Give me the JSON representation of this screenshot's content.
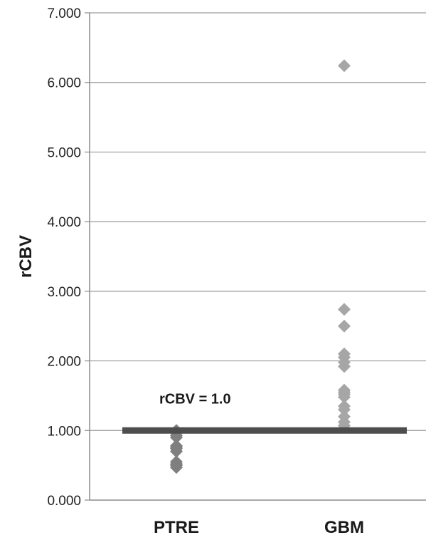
{
  "chart_data": {
    "type": "scatter",
    "title": "",
    "xlabel": "",
    "ylabel": "rCBV",
    "ylim": [
      0,
      7
    ],
    "y_tick_labels": [
      "0.000",
      "1.000",
      "2.000",
      "3.000",
      "4.000",
      "5.000",
      "6.000",
      "7.000"
    ],
    "categories": [
      "PTRE",
      "GBM"
    ],
    "grid": true,
    "series": [
      {
        "category": "PTRE",
        "color": "#7f7f7f",
        "values": [
          1.0,
          0.97,
          0.93,
          0.9,
          0.78,
          0.76,
          0.74,
          0.7,
          0.55,
          0.52,
          0.5,
          0.47
        ]
      },
      {
        "category": "GBM",
        "color": "#a6a6a6",
        "values": [
          6.24,
          2.74,
          2.5,
          2.1,
          2.05,
          1.98,
          1.92,
          1.58,
          1.55,
          1.52,
          1.48,
          1.35,
          1.3,
          1.2,
          1.12,
          1.07
        ]
      }
    ],
    "reference_line": {
      "value": 1.0,
      "label": "rCBV = 1.0",
      "color": "#4d4d4d"
    }
  }
}
